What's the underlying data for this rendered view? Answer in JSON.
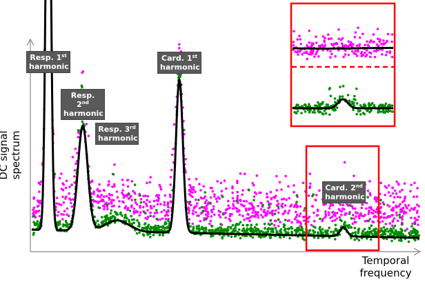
{
  "axes": {
    "y_label": "DC signal spectrum",
    "x_label": "Temporal frequency"
  },
  "peaks": [
    {
      "name": "Resp.",
      "ord": "1",
      "suffix": "st",
      "word": "harmonic"
    },
    {
      "name": "Resp.",
      "ord": "2",
      "suffix": "nd",
      "word": "harmonic"
    },
    {
      "name": "Resp.",
      "ord": "3",
      "suffix": "rd",
      "word": "harmonic"
    },
    {
      "name": "Card.",
      "ord": "1",
      "suffix": "st",
      "word": "harmonic"
    },
    {
      "name": "Card.",
      "ord": "2",
      "suffix": "nd",
      "word": "harmonic"
    }
  ],
  "colors": {
    "series_a": "#ff00ff",
    "series_b": "#008c00",
    "curve": "#000000",
    "highlight": "#ff0000",
    "label_bg": "#595959"
  }
}
